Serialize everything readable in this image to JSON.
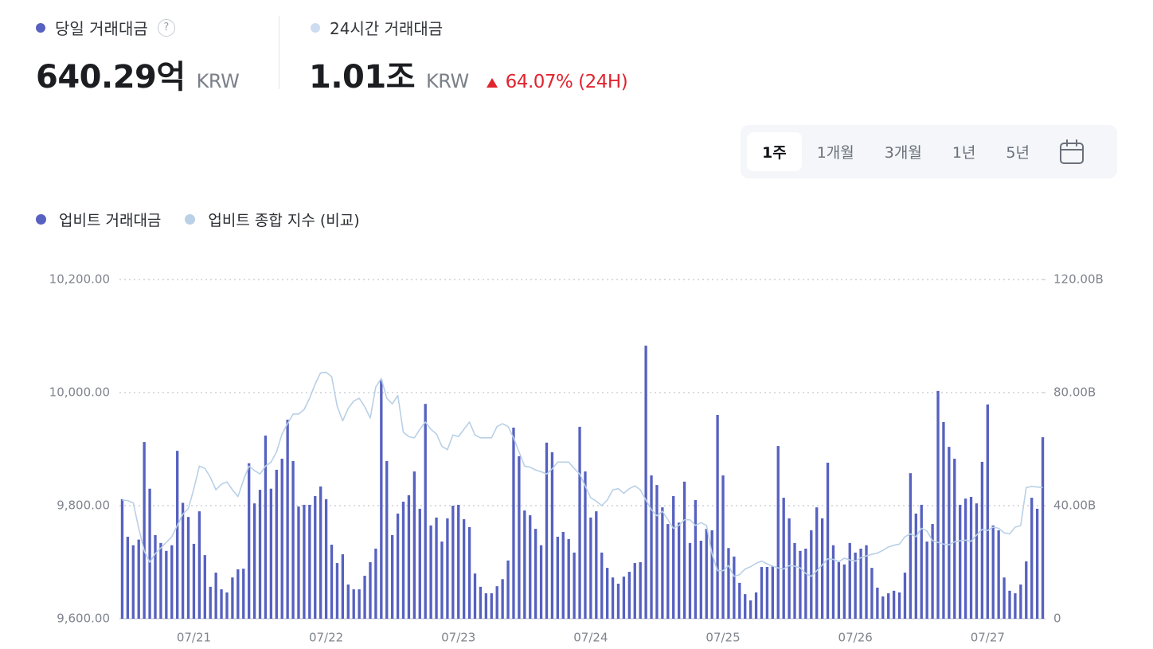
{
  "summary": [
    {
      "label": "당일 거래대금",
      "value": "640.29억",
      "unit": "KRW",
      "help": "?"
    },
    {
      "label": "24시간 거래대금",
      "value": "1.01조",
      "unit": "KRW",
      "change": "64.07% (24H)"
    }
  ],
  "period_tabs": {
    "options": [
      "1주",
      "1개월",
      "3개월",
      "1년",
      "5년"
    ],
    "active": 0
  },
  "chart_data": {
    "type": "bar",
    "categories": [
      null,
      null,
      null,
      null,
      null,
      null,
      null,
      null,
      null,
      null,
      null,
      null,
      null,
      "07/21",
      null,
      null,
      null,
      null,
      null,
      null,
      null,
      null,
      null,
      null,
      null,
      null,
      null,
      null,
      null,
      null,
      null,
      null,
      null,
      null,
      null,
      null,
      null,
      "07/22",
      null,
      null,
      null,
      null,
      null,
      null,
      null,
      null,
      null,
      null,
      null,
      null,
      null,
      null,
      null,
      null,
      null,
      null,
      null,
      null,
      null,
      null,
      null,
      "07/23",
      null,
      null,
      null,
      null,
      null,
      null,
      null,
      null,
      null,
      null,
      null,
      null,
      null,
      null,
      null,
      null,
      null,
      null,
      null,
      null,
      null,
      null,
      null,
      "07/24",
      null,
      null,
      null,
      null,
      null,
      null,
      null,
      null,
      null,
      null,
      null,
      null,
      null,
      null,
      null,
      null,
      null,
      null,
      null,
      null,
      null,
      null,
      null,
      "07/25",
      null,
      null,
      null,
      null,
      null,
      null,
      null,
      null,
      null,
      null,
      null,
      null,
      null,
      null,
      null,
      null,
      null,
      null,
      null,
      null,
      null,
      null,
      null,
      "07/26",
      null,
      null,
      null,
      null,
      null,
      null,
      null,
      null,
      null,
      null,
      null,
      null,
      null,
      null,
      null,
      null,
      null,
      null,
      null,
      null,
      null,
      null,
      null,
      "07/27",
      null,
      null,
      null,
      null,
      null,
      null,
      null,
      null,
      null,
      null
    ],
    "series": [
      {
        "name": "업비트 거래대금",
        "type": "bar",
        "axis": "y2",
        "color": "#5661c0",
        "values": [
          42.3,
          29,
          26,
          28,
          62.5,
          46,
          29.6,
          26.8,
          24,
          26,
          59.4,
          41,
          36,
          26.5,
          38,
          22.5,
          11.3,
          16.3,
          10.4,
          9.3,
          14.6,
          17.5,
          17.7,
          55,
          40.8,
          45.6,
          64.8,
          46,
          52.7,
          56.6,
          70.4,
          55.8,
          39.7,
          40.3,
          40.3,
          43.4,
          46.8,
          42.3,
          26.2,
          19.7,
          22.8,
          12.1,
          10.4,
          10.4,
          15.2,
          20,
          24.8,
          84.5,
          55.8,
          29.6,
          37.2,
          41.4,
          43.7,
          52.1,
          38.9,
          76,
          33,
          35.8,
          27.3,
          35.5,
          40,
          40.3,
          35.2,
          32.4,
          16,
          11.3,
          9,
          9,
          11.5,
          14,
          20.6,
          67.6,
          57.5,
          38.3,
          36.6,
          31.8,
          26,
          62.3,
          58.9,
          29,
          30.7,
          28.2,
          23.4,
          67.9,
          52.1,
          35.8,
          38,
          23.4,
          18,
          14.6,
          12.4,
          14.9,
          16.6,
          19.7,
          20,
          96.6,
          50.7,
          47.3,
          39.4,
          33.5,
          43.4,
          34,
          48.5,
          26.8,
          42,
          27.6,
          31.8,
          31.3,
          72.1,
          50.7,
          25,
          22,
          12.7,
          8.7,
          6.5,
          9.3,
          18.3,
          18.3,
          18.6,
          61.1,
          42.8,
          35.5,
          26.8,
          24,
          24.8,
          31.3,
          39.4,
          35.5,
          55.2,
          26,
          20,
          19.2,
          26.8,
          23.4,
          24.8,
          26,
          18,
          11,
          7.9,
          9,
          9.9,
          9.3,
          16.3,
          51.5,
          37.2,
          40.3,
          27.3,
          33.5,
          80.6,
          69.6,
          60.8,
          56.6,
          40.3,
          42.5,
          43.1,
          40.8,
          55.5,
          75.8,
          33,
          31.3,
          14.6,
          9.9,
          9,
          12.1,
          20.3,
          42.8,
          38.9,
          64.2
        ]
      },
      {
        "name": "업비트 종합 지수 (비교)",
        "type": "line",
        "color": "#b9d0e6",
        "values": [
          9810,
          9809,
          9805,
          9760,
          9720,
          9700,
          9715,
          9725,
          9735,
          9745,
          9765,
          9785,
          9795,
          9830,
          9870,
          9866,
          9850,
          9828,
          9838,
          9842,
          9828,
          9816,
          9845,
          9870,
          9862,
          9856,
          9870,
          9877,
          9895,
          9927,
          9945,
          9962,
          9962,
          9970,
          9990,
          10015,
          10035,
          10036,
          10028,
          9976,
          9950,
          9972,
          9985,
          9990,
          9975,
          9955,
          10010,
          10025,
          9990,
          9980,
          9995,
          9930,
          9922,
          9920,
          9935,
          9948,
          9935,
          9927,
          9905,
          9899,
          9925,
          9922,
          9935,
          9948,
          9925,
          9920,
          9920,
          9920,
          9940,
          9945,
          9940,
          9920,
          9895,
          9870,
          9868,
          9863,
          9860,
          9856,
          9865,
          9877,
          9877,
          9877,
          9866,
          9856,
          9835,
          9814,
          9808,
          9800,
          9810,
          9828,
          9830,
          9822,
          9830,
          9835,
          9828,
          9810,
          9793,
          9782,
          9790,
          9775,
          9760,
          9765,
          9775,
          9775,
          9765,
          9770,
          9765,
          9715,
          9685,
          9685,
          9694,
          9675,
          9678,
          9688,
          9692,
          9698,
          9702,
          9697,
          9693,
          9690,
          9688,
          9694,
          9693,
          9690,
          9680,
          9675,
          9685,
          9695,
          9706,
          9705,
          9701,
          9707,
          9704,
          9702,
          9708,
          9711,
          9714,
          9716,
          9721,
          9727,
          9730,
          9732,
          9745,
          9750,
          9745,
          9760,
          9755,
          9738,
          9735,
          9732,
          9731,
          9736,
          9738,
          9739,
          9737,
          9748,
          9758,
          9756,
          9762,
          9760,
          9752,
          9750,
          9762,
          9765,
          9832,
          9834,
          9833,
          9832
        ]
      }
    ],
    "ylim": [
      9600,
      10200
    ],
    "yticks": [
      {
        "value": 9600,
        "label": "9,600.00"
      },
      {
        "value": 9800,
        "label": "9,800.00"
      },
      {
        "value": 10000,
        "label": "10,000.00"
      },
      {
        "value": 10200,
        "label": "10,200.00"
      }
    ],
    "y2lim": [
      0,
      120
    ],
    "y2ticks": [
      0,
      {
        "value": 40,
        "label": "40.00B"
      },
      {
        "value": 80,
        "label": "80.00B"
      },
      {
        "value": 120,
        "label": "120.00B"
      }
    ],
    "grid": true,
    "legend": "top-left"
  }
}
